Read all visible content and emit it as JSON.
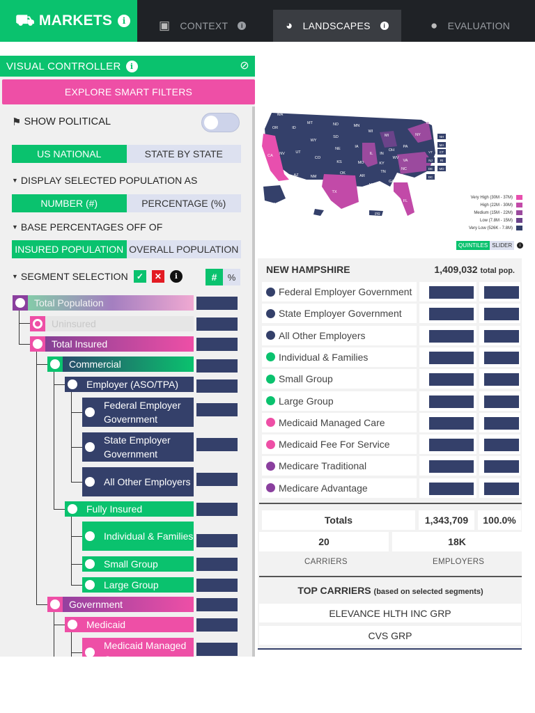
{
  "topnav": {
    "brand": "MARKETS",
    "tabs": [
      {
        "label": "CONTEXT",
        "icon": "book-icon"
      },
      {
        "label": "LANDSCAPES",
        "icon": "pie-chart-icon"
      },
      {
        "label": "EVALUATION",
        "icon": "lightbulb-icon"
      }
    ]
  },
  "panel": {
    "title": "VISUAL CONTROLLER",
    "smart_filters": "EXPLORE SMART FILTERS",
    "show_political": "SHOW POLITICAL",
    "scope": [
      "US NATIONAL",
      "STATE BY STATE"
    ],
    "display_header": "DISPLAY SELECTED POPULATION AS",
    "display_opts": [
      "NUMBER (#)",
      "PERCENTAGE (%)"
    ],
    "base_header": "BASE PERCENTAGES OFF OF",
    "base_opts": [
      "INSURED POPULATION",
      "OVERALL POPULATION"
    ],
    "segment_header": "SEGMENT SELECTION",
    "hash": "#",
    "pct": "%"
  },
  "tree": [
    "Total Population",
    "Uninsured",
    "Total Insured",
    "Commercial",
    "Employer (ASO/TPA)",
    "Federal Employer Government",
    "State Employer Government",
    "All Other Employers",
    "Fully Insured",
    "Individual & Families",
    "Small Group",
    "Large Group",
    "Government",
    "Medicaid",
    "Medicaid Managed C..."
  ],
  "map": {
    "states": [
      "WA",
      "MT",
      "ND",
      "MN",
      "OR",
      "ID",
      "WY",
      "SD",
      "WI",
      "MI",
      "NV",
      "UT",
      "CO",
      "NE",
      "IA",
      "IL",
      "IN",
      "OH",
      "PA",
      "NY",
      "CA",
      "AZ",
      "NM",
      "KS",
      "MO",
      "KY",
      "WV",
      "VA",
      "OK",
      "AR",
      "TN",
      "NC",
      "TX",
      "LA",
      "MS",
      "AL",
      "GA",
      "SC",
      "FL",
      "AK",
      "HI",
      "PR",
      "ME",
      "VT",
      "NH",
      "MA",
      "CT",
      "RI",
      "NJ",
      "DE",
      "MD",
      "DC"
    ],
    "legend": [
      {
        "label": "Very High (30M - 37M)",
        "color": "#e84fae"
      },
      {
        "label": "High (22M - 30M)",
        "color": "#c24aa8"
      },
      {
        "label": "Medium (15M - 22M)",
        "color": "#9b4a9e"
      },
      {
        "label": "Low (7.8M - 15M)",
        "color": "#6b438a"
      },
      {
        "label": "Very Low (526K - 7.8M)",
        "color": "#34406a"
      }
    ],
    "quintiles": "QUINTILES",
    "slider": "SLIDER"
  },
  "state": {
    "name": "NEW HAMPSHIRE",
    "pop": "1,409,032",
    "pop_label": "total pop."
  },
  "segments": [
    {
      "label": "Federal Employer Government",
      "color": "#34406a"
    },
    {
      "label": "State Employer Government",
      "color": "#34406a"
    },
    {
      "label": "All Other Employers",
      "color": "#34406a"
    },
    {
      "label": "Individual & Families",
      "color": "#0ac26e"
    },
    {
      "label": "Small Group",
      "color": "#0ac26e"
    },
    {
      "label": "Large Group",
      "color": "#0ac26e"
    },
    {
      "label": "Medicaid Managed Care",
      "color": "#ee4fa6"
    },
    {
      "label": "Medicaid Fee For Service",
      "color": "#ee4fa6"
    },
    {
      "label": "Medicare Traditional",
      "color": "#8a3f9e"
    },
    {
      "label": "Medicare Advantage",
      "color": "#8a3f9e"
    }
  ],
  "totals": {
    "label": "Totals",
    "value": "1,343,709",
    "pct": "100.0%"
  },
  "counts": {
    "carriers": "20",
    "carriers_label": "CARRIERS",
    "employers": "18K",
    "employers_label": "EMPLOYERS"
  },
  "top_carriers": {
    "title": "TOP CARRIERS",
    "subtitle": "(based on selected segments)",
    "items": [
      "ELEVANCE HLTH INC GRP",
      "CVS GRP"
    ]
  }
}
